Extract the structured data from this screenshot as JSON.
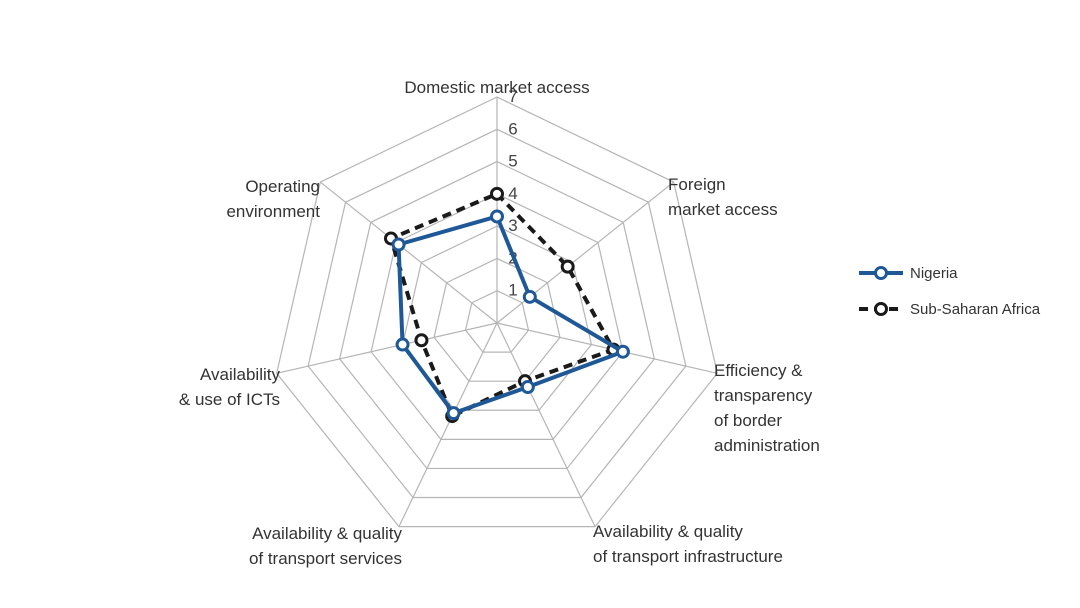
{
  "chart_data": {
    "type": "radar",
    "axes": [
      [
        "Domestic market access"
      ],
      [
        "Foreign",
        "market access"
      ],
      [
        "Efficiency &",
        "transparency",
        "of border",
        "administration"
      ],
      [
        "Availability & quality",
        "of transport infrastructure"
      ],
      [
        "Availability & quality",
        "of transport services"
      ],
      [
        "Availability",
        "& use of ICTs"
      ],
      [
        "Operating",
        "environment"
      ]
    ],
    "rlim": [
      0,
      7
    ],
    "ticks": [
      "1",
      "2",
      "3",
      "4",
      "5",
      "6",
      "7"
    ],
    "grid": true,
    "legend_position": "right",
    "series": [
      {
        "name": "Nigeria",
        "color": "#1f5896",
        "line_style": "solid",
        "values": [
          3.3,
          1.3,
          4.0,
          2.2,
          3.1,
          3.0,
          3.9
        ]
      },
      {
        "name": "Sub-Saharan Africa",
        "color": "#1a1a1a",
        "line_style": "dashed",
        "values": [
          4.0,
          2.8,
          3.7,
          2.0,
          3.2,
          2.4,
          4.2
        ]
      }
    ]
  }
}
